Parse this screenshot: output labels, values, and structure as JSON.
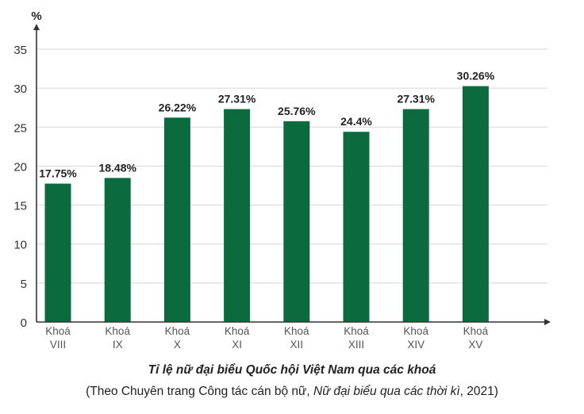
{
  "chart_data": {
    "type": "bar",
    "ylabel": "%",
    "ylim": [
      0,
      35
    ],
    "yticks": [
      0,
      5,
      10,
      15,
      20,
      25,
      30,
      35
    ],
    "grid": true,
    "categories": [
      [
        "Khoá",
        "VIII"
      ],
      [
        "Khoá",
        "IX"
      ],
      [
        "Khoá",
        "X"
      ],
      [
        "Khoá",
        "XI"
      ],
      [
        "Khoá",
        "XII"
      ],
      [
        "Khoá",
        "XIII"
      ],
      [
        "Khoá",
        "XIV"
      ],
      [
        "Khoá",
        "XV"
      ]
    ],
    "values": [
      17.75,
      18.48,
      26.22,
      27.31,
      25.76,
      24.4,
      27.31,
      30.26
    ],
    "value_labels": [
      "17.75%",
      "18.48%",
      "26.22%",
      "27.31%",
      "25.76%",
      "24.4%",
      "27.31%",
      "30.26%"
    ],
    "bar_color": "#0b6b3f",
    "grid_color": "#d6d6d6",
    "axis_color": "#333333"
  },
  "caption": {
    "title": "Tỉ lệ nữ đại biểu Quốc hội Việt Nam qua các khoá",
    "source_prefix": "(Theo Chuyên trang Công tác cán bộ nữ, ",
    "source_italic": "Nữ đại biểu qua các thời kì",
    "source_suffix": ", 2021)"
  }
}
